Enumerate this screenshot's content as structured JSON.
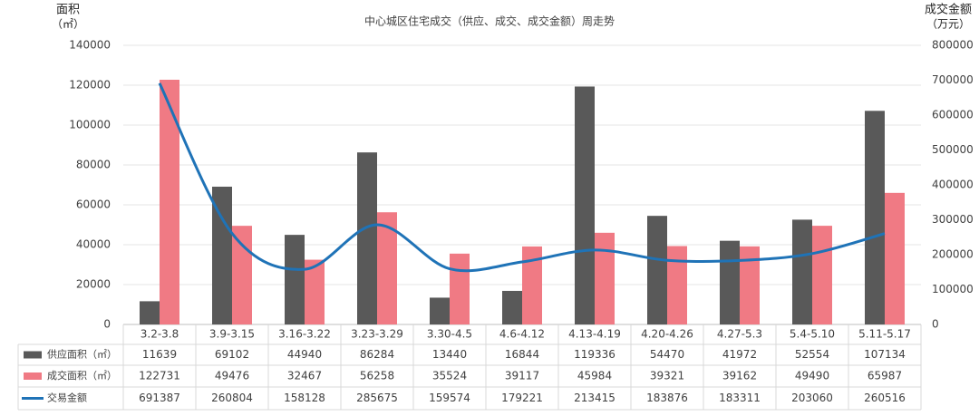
{
  "chart_data": {
    "type": "bar",
    "title": "中心城区住宅成交（供应、成交、成交金额）周走势",
    "ylabel": [
      "面积",
      "（㎡）"
    ],
    "y2label": [
      "成交金额",
      "（万元）"
    ],
    "categories": [
      "3.2-3.8",
      "3.9-3.15",
      "3.16-3.22",
      "3.23-3.29",
      "3.30-4.5",
      "4.6-4.12",
      "4.13-4.19",
      "4.20-4.26",
      "4.27-5.3",
      "5.4-5.10",
      "5.11-5.17"
    ],
    "series": [
      {
        "name": "供应面积（㎡）",
        "color": "#595959",
        "type": "bar",
        "values": [
          11639,
          69102,
          44940,
          86284,
          13440,
          16844,
          119336,
          54470,
          41972,
          52554,
          107134
        ]
      },
      {
        "name": "成交面积（㎡）",
        "color": "#f07a84",
        "type": "bar",
        "values": [
          122731,
          49476,
          32467,
          56258,
          35524,
          39117,
          45984,
          39321,
          39162,
          49490,
          65987
        ]
      },
      {
        "name": "交易金额",
        "color": "#1f73b7",
        "type": "line",
        "axis": "y2",
        "values": [
          691387,
          260804,
          158128,
          285675,
          159574,
          179221,
          213415,
          183876,
          183311,
          203060,
          260516
        ]
      }
    ],
    "ylim": [
      0,
      140000
    ],
    "yticks": [
      0,
      20000,
      40000,
      60000,
      80000,
      100000,
      120000,
      140000
    ],
    "y2lim": [
      0,
      800000
    ],
    "y2ticks": [
      0,
      100000,
      200000,
      300000,
      400000,
      500000,
      600000,
      700000,
      800000
    ],
    "grid": true
  }
}
